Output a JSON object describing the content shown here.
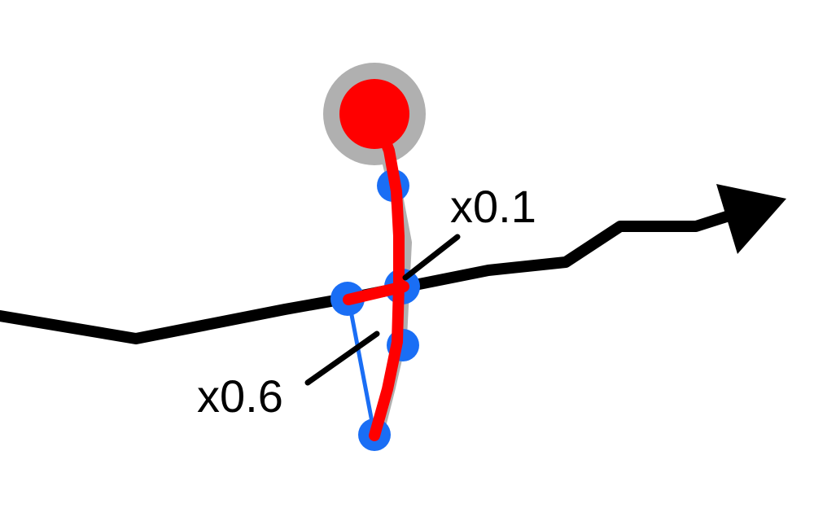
{
  "annotations": {
    "upper_label": "x0.1",
    "lower_label": "x0.6"
  },
  "colors": {
    "background": "#ffffff",
    "main_path": "#000000",
    "highlight_path": "#ff0000",
    "control_polygon": "#1a6ef5",
    "control_point": "#1a6ef5",
    "shadow": "#b0b0b0"
  },
  "icons": {
    "arrowhead": "arrowhead-icon",
    "start_knob": "circle-knob-icon"
  }
}
